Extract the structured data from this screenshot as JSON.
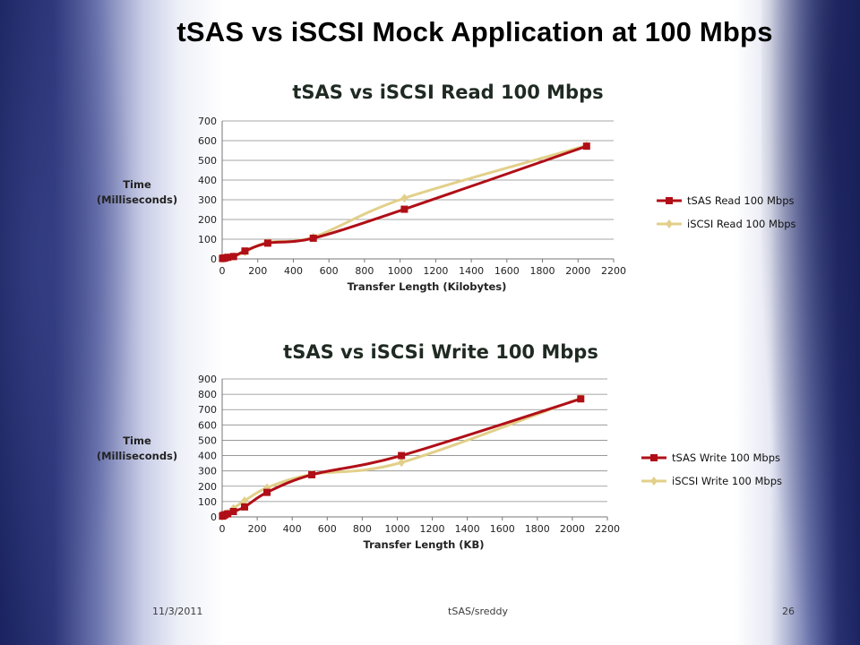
{
  "slide": {
    "title": "tSAS vs iSCSI Mock Application at 100 Mbps",
    "footer_date": "11/3/2011",
    "footer_center": "tSAS/sreddy",
    "page_number": "26"
  },
  "colors": {
    "tsas": "#b00f17",
    "iscsi": "#e2d08a",
    "grid": "#8a8a8a"
  },
  "chart_data": [
    {
      "type": "line",
      "title": "tSAS vs iSCSI Read 100 Mbps",
      "xlabel": "Transfer Length (Kilobytes)",
      "ylabel_line1": "Time",
      "ylabel_line2": "(Milliseconds)",
      "xlim": [
        0,
        2200
      ],
      "ylim": [
        0,
        700
      ],
      "xticks": [
        "0",
        "200",
        "400",
        "600",
        "800",
        "1000",
        "1200",
        "1400",
        "1600",
        "1800",
        "2000",
        "2200"
      ],
      "yticks": [
        "0",
        "100",
        "200",
        "300",
        "400",
        "500",
        "600",
        "700"
      ],
      "x": [
        2,
        4,
        8,
        16,
        32,
        64,
        128,
        256,
        512,
        1024,
        2048
      ],
      "series": [
        {
          "name": "tSAS Read 100 Mbps",
          "values": [
            2,
            3,
            4,
            5,
            8,
            12,
            40,
            80,
            105,
            252,
            572
          ]
        },
        {
          "name": "iSCSI Read 100 Mbps",
          "values": [
            2,
            3,
            4,
            5,
            8,
            12,
            35,
            85,
            110,
            308,
            575
          ]
        }
      ],
      "grid": "horizontal",
      "legend": "right"
    },
    {
      "type": "line",
      "title": "tSAS vs iSCSi Write 100 Mbps",
      "xlabel": "Transfer Length (KB)",
      "ylabel_line1": "Time",
      "ylabel_line2": "(Milliseconds)",
      "xlim": [
        0,
        2200
      ],
      "ylim": [
        0,
        900
      ],
      "xticks": [
        "0",
        "200",
        "400",
        "600",
        "800",
        "1000",
        "1200",
        "1400",
        "1600",
        "1800",
        "2000",
        "2200"
      ],
      "yticks": [
        "0",
        "100",
        "200",
        "300",
        "400",
        "500",
        "600",
        "700",
        "800",
        "900"
      ],
      "x": [
        2,
        4,
        8,
        16,
        32,
        64,
        128,
        256,
        512,
        1024,
        2048
      ],
      "series": [
        {
          "name": "tSAS Write 100 Mbps",
          "values": [
            5,
            8,
            10,
            14,
            20,
            35,
            65,
            160,
            275,
            400,
            770
          ]
        },
        {
          "name": "iSCSI Write 100 Mbps",
          "values": [
            5,
            8,
            12,
            18,
            25,
            55,
            105,
            190,
            278,
            355,
            775
          ]
        }
      ],
      "grid": "horizontal",
      "legend": "right"
    }
  ]
}
